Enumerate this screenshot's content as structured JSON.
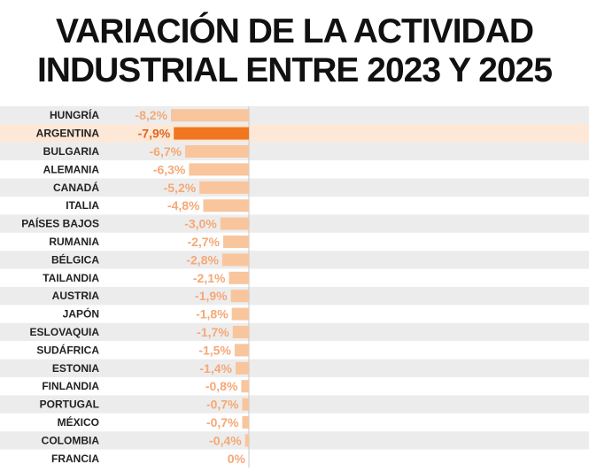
{
  "title": {
    "line1": "VARIACIÓN DE LA ACTIVIDAD",
    "line2": "INDUSTRIAL ENTRE 2023 Y 2025"
  },
  "colors": {
    "bar_default": "#f8c59d",
    "bar_highlight": "#f0761f",
    "label_default": "#f5a877",
    "label_highlight": "#e0651c",
    "row_highlight": "#fde7d6",
    "row_even": "#ececec",
    "row_odd": "#ffffff",
    "country_text": "#222222",
    "zero_line": "#c8c8c8"
  },
  "chart_data": {
    "type": "bar",
    "orientation": "horizontal",
    "title": "VARIACIÓN DE LA ACTIVIDAD INDUSTRIAL ENTRE 2023 Y 2025",
    "highlight": "ARGENTINA",
    "categories": [
      "HUNGRÍA",
      "ARGENTINA",
      "BULGARIA",
      "ALEMANIA",
      "CANADÁ",
      "ITALIA",
      "PAÍSES BAJOS",
      "RUMANIA",
      "BÉLGICA",
      "TAILANDIA",
      "AUSTRIA",
      "JAPÓN",
      "ESLOVAQUIA",
      "SUDÁFRICA",
      "ESTONIA",
      "FINLANDIA",
      "PORTUGAL",
      "MÉXICO",
      "COLOMBIA",
      "FRANCIA"
    ],
    "values": [
      -8.2,
      -7.9,
      -6.7,
      -6.3,
      -5.2,
      -4.8,
      -3.0,
      -2.7,
      -2.8,
      -2.1,
      -1.9,
      -1.8,
      -1.7,
      -1.5,
      -1.4,
      -0.8,
      -0.7,
      -0.7,
      -0.4,
      0
    ],
    "value_labels": [
      "-8,2%",
      "-7,9%",
      "-6,7%",
      "-6,3%",
      "-5,2%",
      "-4,8%",
      "-3,0%",
      "-2,7%",
      "-2,8%",
      "-2,1%",
      "-1,9%",
      "-1,8%",
      "-1,7%",
      "-1,5%",
      "-1,4%",
      "-0,8%",
      "-0,7%",
      "-0,7%",
      "-0,4%",
      "0%"
    ],
    "xlim": [
      -8.2,
      0
    ],
    "xlabel": "",
    "ylabel": ""
  }
}
